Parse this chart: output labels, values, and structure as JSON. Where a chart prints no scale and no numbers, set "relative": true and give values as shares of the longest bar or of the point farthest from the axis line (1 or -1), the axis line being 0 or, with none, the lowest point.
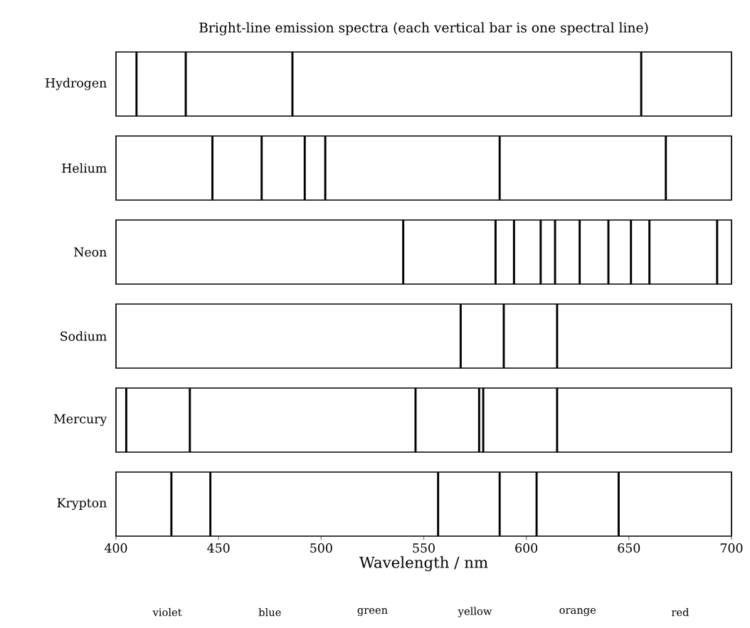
{
  "chart_data": [
    {
      "type": "bar",
      "title": "Bright-line emission spectra (each vertical bar is one spectral line)",
      "ylabel": "Hydrogen",
      "x": [
        410,
        434,
        486,
        656
      ],
      "values": [
        1,
        1,
        1,
        1
      ],
      "color": "#000000",
      "relative": true,
      "xlim": [
        400,
        700
      ],
      "tick_labels": false
    },
    {
      "type": "bar",
      "ylabel": "Helium",
      "x": [
        447,
        471,
        492,
        502,
        587,
        668
      ],
      "values": [
        1,
        1,
        1,
        1,
        1,
        1
      ],
      "color": "#000000",
      "relative": true,
      "xlim": [
        400,
        700
      ],
      "tick_labels": false
    },
    {
      "type": "bar",
      "ylabel": "Neon",
      "x": [
        540,
        585,
        594,
        607,
        614,
        626,
        640,
        651,
        660,
        693
      ],
      "values": [
        1,
        1,
        1,
        1,
        1,
        1,
        1,
        1,
        1,
        1
      ],
      "color": "#000000",
      "relative": true,
      "xlim": [
        400,
        700
      ],
      "tick_labels": false
    },
    {
      "type": "bar",
      "ylabel": "Sodium",
      "x": [
        568,
        589,
        615
      ],
      "values": [
        1,
        1,
        1
      ],
      "color": "#000000",
      "relative": true,
      "xlim": [
        400,
        700
      ],
      "tick_labels": false
    },
    {
      "type": "bar",
      "ylabel": "Mercury",
      "x": [
        405,
        436,
        546,
        577,
        579,
        615
      ],
      "values": [
        1,
        1,
        1,
        1,
        1,
        1
      ],
      "color": "#000000",
      "relative": true,
      "xlim": [
        400,
        700
      ],
      "tick_labels": false
    },
    {
      "type": "bar",
      "ylabel": "Krypton",
      "xlabel": "Wavelength  /  nm",
      "x": [
        427,
        446,
        557,
        587,
        605,
        645
      ],
      "values": [
        1,
        1,
        1,
        1,
        1,
        1
      ],
      "color": "#000000",
      "relative": true,
      "xlim": [
        400,
        700
      ],
      "xticks": [
        400,
        450,
        500,
        550,
        600,
        650,
        700
      ],
      "tick_labels": "x",
      "annotations": [
        "violet",
        "blue",
        "green",
        "yellow",
        "orange",
        "red"
      ]
    }
  ]
}
